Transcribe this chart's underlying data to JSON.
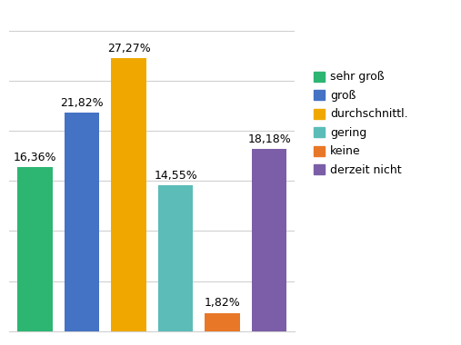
{
  "categories": [
    "sehr groß",
    "groß",
    "durchschnittl.",
    "gering",
    "keine",
    "derzeit nicht"
  ],
  "values": [
    16.36,
    21.82,
    27.27,
    14.55,
    1.82,
    18.18
  ],
  "bar_colors": [
    "#2db572",
    "#4472c4",
    "#f0a800",
    "#5bbcb8",
    "#e87828",
    "#7b5ea7"
  ],
  "labels": [
    "16,36%",
    "21,82%",
    "27,27%",
    "14,55%",
    "1,82%",
    "18,18%"
  ],
  "legend_labels": [
    "sehr groß",
    "groß",
    "durchschnittl.",
    "gering",
    "keine",
    "derzeit nicht"
  ],
  "ylim": [
    0,
    31
  ],
  "background_color": "#ffffff",
  "grid_color": "#d0d0d0",
  "label_fontsize": 9,
  "legend_fontsize": 9,
  "bar_width": 0.75
}
